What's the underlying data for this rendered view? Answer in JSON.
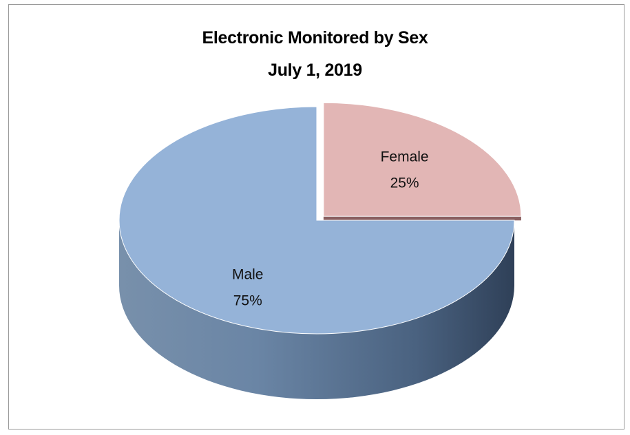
{
  "chart_data": {
    "type": "pie",
    "title": "Electronic Monitored by Sex",
    "subtitle": "July 1, 2019",
    "categories": [
      "Female",
      "Male"
    ],
    "values": [
      25,
      75
    ],
    "labels": [
      {
        "name": "Female",
        "percent": "25%"
      },
      {
        "name": "Male",
        "percent": "75%"
      }
    ],
    "exploded": "Female",
    "three_d": true,
    "colors": {
      "Female": "#e2b6b5",
      "Male": "#95b3d8",
      "Female_side": "#8a5f60",
      "Male_side": "#5a7594"
    },
    "legend": "none"
  }
}
